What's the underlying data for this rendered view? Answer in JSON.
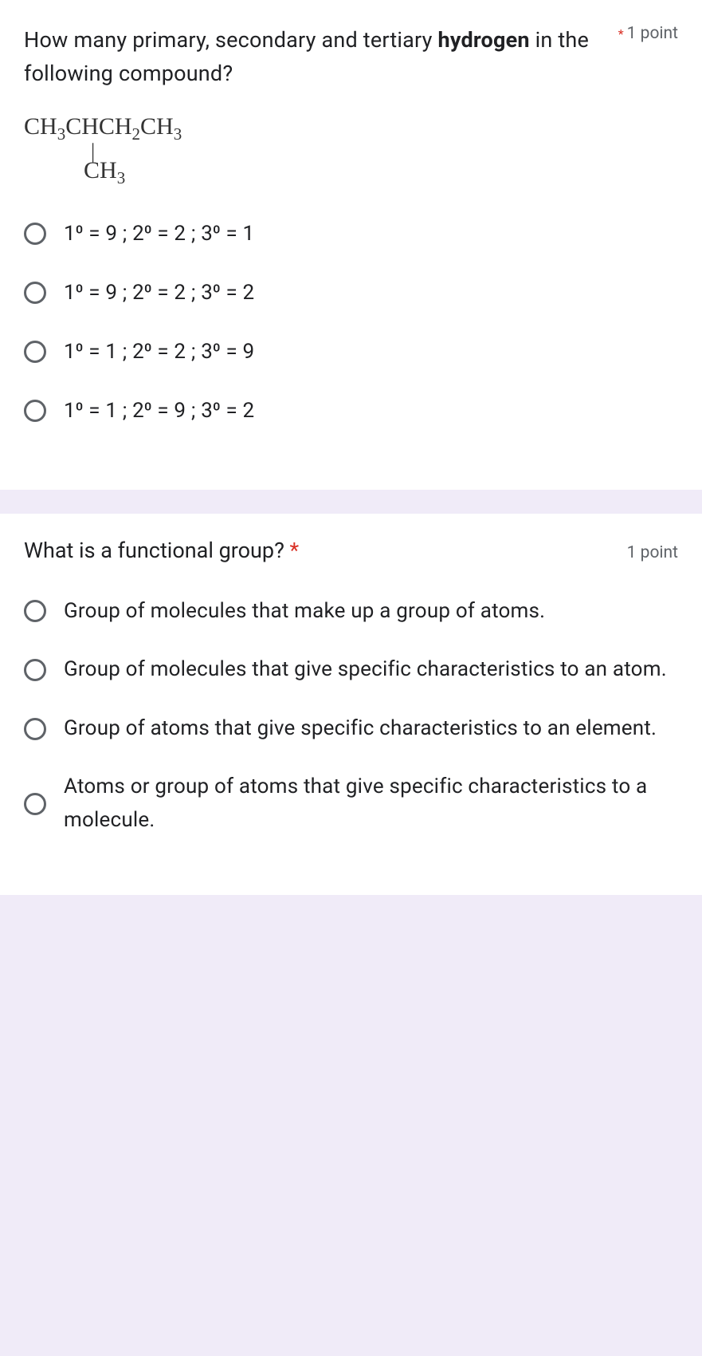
{
  "q1": {
    "title_pre": "How many primary, secondary and tertiary ",
    "title_bold": "hydrogen",
    "title_post": " in the following compound?",
    "points": "1 point",
    "formula_main": "CH₃CHCH₂CH₃",
    "formula_bond": "|",
    "formula_sub": "CH₃",
    "options": [
      "1⁰ = 9 ;  2⁰ = 2 ; 3⁰ = 1",
      "1⁰ = 9 ;  2⁰ = 2 ; 3⁰ = 2",
      "1⁰ = 1 ;  2⁰ = 2 ; 3⁰ = 9",
      "1⁰ = 1 ;  2⁰ = 9 ; 3⁰ = 2"
    ]
  },
  "q2": {
    "title": "What is a functional group? ",
    "points": "1 point",
    "options": [
      "Group of molecules that make up a group of atoms.",
      "Group of molecules that give specific characteristics to an atom.",
      "Group of atoms that give specific characteristics to an element.",
      "Atoms or group of atoms that give specific characteristics to a molecule."
    ]
  }
}
